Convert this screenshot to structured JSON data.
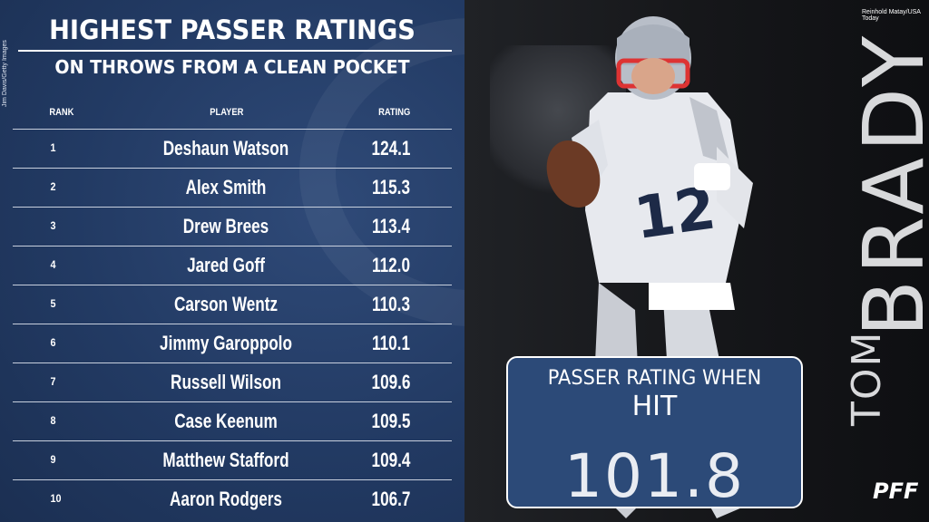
{
  "title": {
    "main": "HIGHEST PASSER RATINGS",
    "sub": "ON THROWS FROM A CLEAN POCKET"
  },
  "credits": {
    "left": "Jim Davis/Getty Images",
    "right": "Reinhold Matay/USA Today"
  },
  "table": {
    "headers": {
      "rank": "RANK",
      "player": "PLAYER",
      "rating": "RATING"
    },
    "rows": [
      {
        "rank": "1",
        "player": "Deshaun Watson",
        "rating": "124.1"
      },
      {
        "rank": "2",
        "player": "Alex Smith",
        "rating": "115.3"
      },
      {
        "rank": "3",
        "player": "Drew Brees",
        "rating": "113.4"
      },
      {
        "rank": "4",
        "player": "Jared Goff",
        "rating": "112.0"
      },
      {
        "rank": "5",
        "player": "Carson Wentz",
        "rating": "110.3"
      },
      {
        "rank": "6",
        "player": "Jimmy Garoppolo",
        "rating": "110.1"
      },
      {
        "rank": "7",
        "player": "Russell Wilson",
        "rating": "109.6"
      },
      {
        "rank": "8",
        "player": "Case Keenum",
        "rating": "109.5"
      },
      {
        "rank": "9",
        "player": "Matthew Stafford",
        "rating": "109.4"
      },
      {
        "rank": "10",
        "player": "Aaron Rodgers",
        "rating": "106.7"
      }
    ]
  },
  "featured": {
    "first_name": "TOM",
    "last_name": "BRADY",
    "stat_label": "PASSER RATING WHEN",
    "stat_condition": "HIT",
    "stat_value": "101.8"
  },
  "logo": {
    "text": "PFF"
  }
}
